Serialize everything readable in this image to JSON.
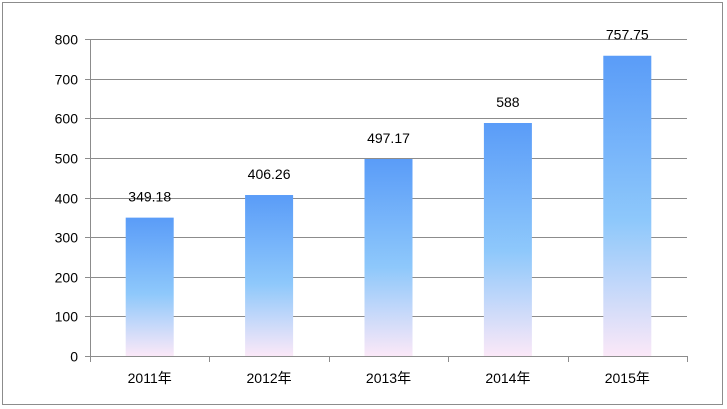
{
  "chart_data": {
    "type": "bar",
    "categories": [
      "2011年",
      "2012年",
      "2013年",
      "2014年",
      "2015年"
    ],
    "values": [
      349.18,
      406.26,
      497.17,
      588,
      757.75
    ],
    "data_labels": [
      "349.18",
      "406.26",
      "497.17",
      "588",
      "757.75"
    ],
    "title": "",
    "xlabel": "",
    "ylabel": "",
    "ylim": [
      0,
      800
    ],
    "yticks": [
      "0",
      "100",
      "200",
      "300",
      "400",
      "500",
      "600",
      "700",
      "800"
    ],
    "grid": true,
    "legend": "none",
    "colors": {
      "bar_top": "#5a9cf8",
      "bar_mid": "#8ec8fb",
      "bar_bottom": "#fbe8f8",
      "grid": "#8c8c8c",
      "axis": "#8c8c8c"
    }
  }
}
